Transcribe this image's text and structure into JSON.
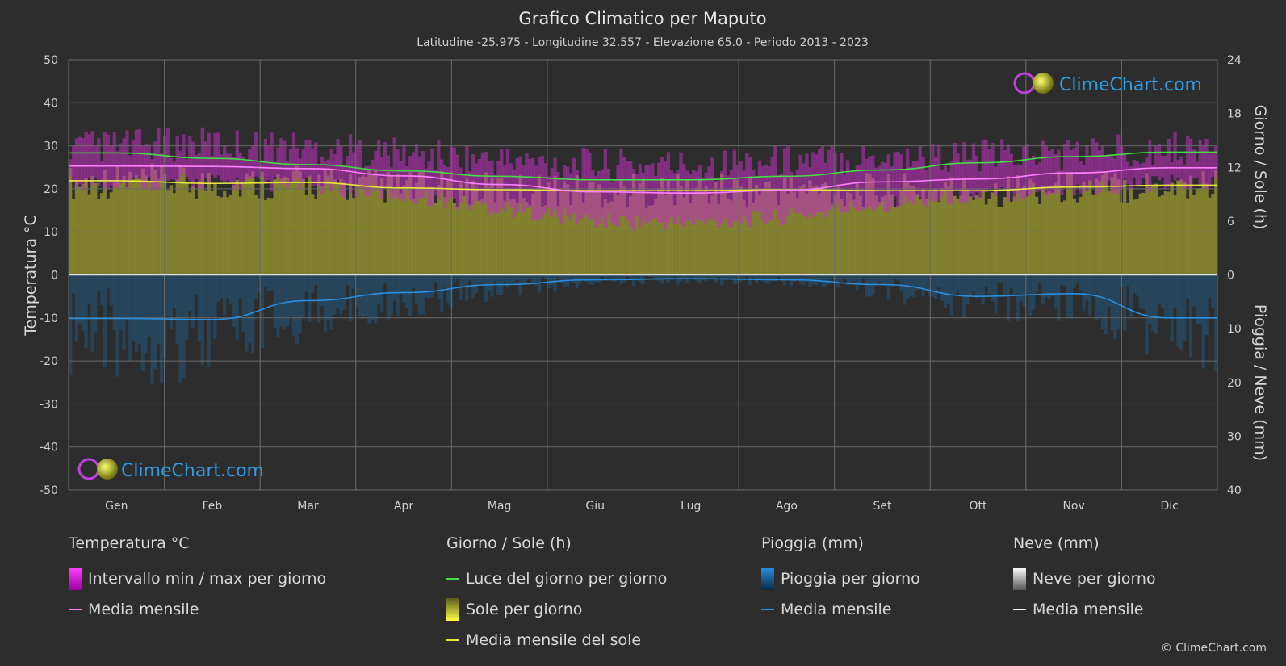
{
  "title": "Grafico Climatico per Maputo",
  "subtitle": "Latitudine -25.975 - Longitudine 32.557 - Elevazione 65.0 - Periodo 2013 - 2023",
  "logo_text": "ClimeChart.com",
  "copyright": "© ClimeChart.com",
  "colors": {
    "background": "#2d2d2d",
    "temp_range": "#e020e0",
    "temp_mean": "#ff80ff",
    "daylight": "#44dd44",
    "sunshine_fill": "#9a9a2e",
    "sunshine_mean": "#e8e840",
    "rain_fill": "#1f5f8f",
    "rain_mean": "#2b8fe0",
    "snow_mean": "#ffffff",
    "logo_blue": "#2b9fe8"
  },
  "chart_data": {
    "type": "area",
    "months": [
      "Gen",
      "Feb",
      "Mar",
      "Apr",
      "Mag",
      "Giu",
      "Lug",
      "Ago",
      "Set",
      "Ott",
      "Nov",
      "Dic"
    ],
    "y_left": {
      "label": "Temperatura °C",
      "range": [
        -50,
        50
      ],
      "ticks": [
        "50",
        "40",
        "30",
        "20",
        "10",
        "0",
        "-10",
        "-20",
        "-30",
        "-40",
        "-50"
      ]
    },
    "y_right_top": {
      "label": "Giorno / Sole (h)",
      "range": [
        0,
        24
      ],
      "ticks": [
        "24",
        "18",
        "12",
        "6",
        "0"
      ]
    },
    "y_right_bottom": {
      "label": "Pioggia / Neve (mm)",
      "range": [
        0,
        40
      ],
      "ticks": [
        "0",
        "10",
        "20",
        "30",
        "40"
      ]
    },
    "series": [
      {
        "name": "Luce del giorno per giorno",
        "unit": "h",
        "values": [
          13.6,
          13.0,
          12.3,
          11.6,
          11.0,
          10.6,
          10.6,
          11.0,
          11.7,
          12.5,
          13.2,
          13.7
        ]
      },
      {
        "name": "Media mensile del sole",
        "unit": "h",
        "values": [
          10.5,
          10.2,
          10.3,
          9.7,
          9.5,
          9.4,
          9.4,
          9.5,
          9.4,
          9.4,
          9.8,
          10.0
        ]
      },
      {
        "name": "Media mensile",
        "group": "Temperatura",
        "unit": "°C",
        "values": [
          25.3,
          25.2,
          24.7,
          23.0,
          21.0,
          19.3,
          19.0,
          19.7,
          21.6,
          22.3,
          23.7,
          24.9
        ]
      },
      {
        "name": "Intervallo min / max per giorno (min)",
        "unit": "°C",
        "values": [
          21.5,
          21.5,
          20.8,
          18.5,
          15.5,
          12.5,
          12.0,
          13.5,
          16.5,
          18.5,
          20.0,
          21.3
        ]
      },
      {
        "name": "Intervallo min / max per giorno (max)",
        "unit": "°C",
        "values": [
          30.0,
          30.5,
          29.5,
          28.0,
          26.5,
          25.5,
          25.5,
          26.5,
          27.5,
          27.5,
          28.5,
          29.5
        ]
      },
      {
        "name": "Media mensile",
        "group": "Pioggia",
        "unit": "mm",
        "values": [
          8.1,
          8.3,
          4.8,
          3.3,
          1.8,
          0.9,
          0.7,
          0.9,
          1.8,
          4.0,
          3.5,
          8.0
        ]
      }
    ],
    "grid": true
  },
  "legend": {
    "temperature": {
      "title": "Temperatura °C",
      "items": [
        "Intervallo min / max per giorno",
        "Media mensile"
      ]
    },
    "sun": {
      "title": "Giorno / Sole (h)",
      "items": [
        "Luce del giorno per giorno",
        "Sole per giorno",
        "Media mensile del sole"
      ]
    },
    "rain": {
      "title": "Pioggia (mm)",
      "items": [
        "Pioggia per giorno",
        "Media mensile"
      ]
    },
    "snow": {
      "title": "Neve (mm)",
      "items": [
        "Neve per giorno",
        "Media mensile"
      ]
    }
  }
}
